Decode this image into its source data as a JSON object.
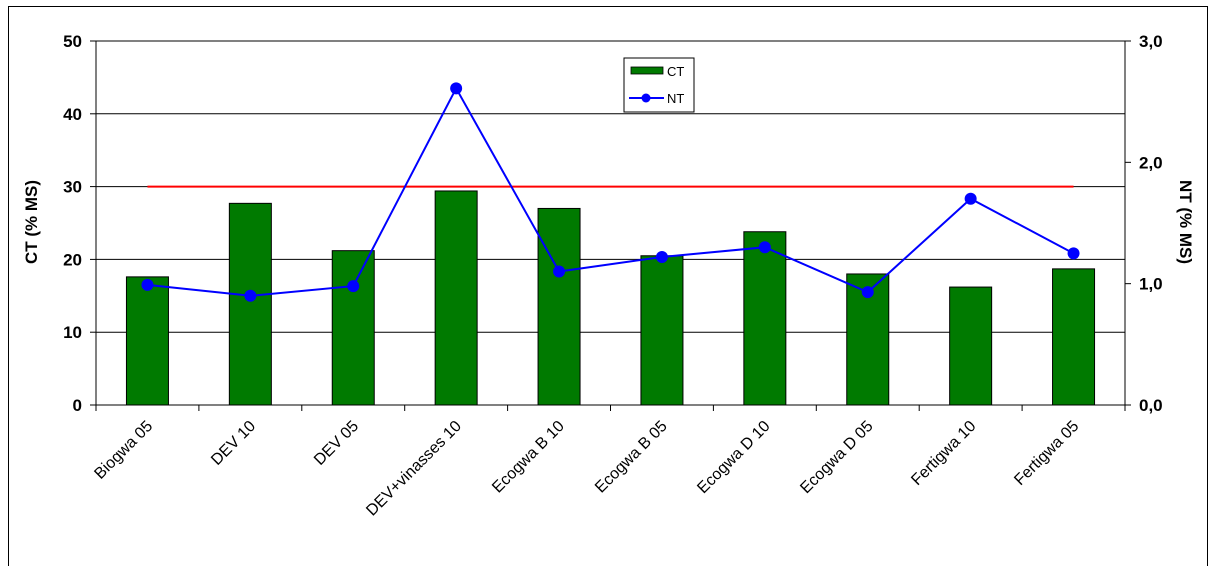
{
  "chart_data": {
    "type": "bar",
    "categories": [
      "Biogwa 05",
      "DEV 10",
      "DEV 05",
      "DEV+vinasses 10",
      "Ecogwa B 10",
      "Ecogwa B 05",
      "Ecogwa D 10",
      "Ecogwa D 05",
      "Fertigwa 10",
      "Fertigwa 05"
    ],
    "series": [
      {
        "name": "CT",
        "type": "bar",
        "axis": "left",
        "color": "#007a00",
        "values": [
          17.6,
          27.7,
          21.2,
          29.4,
          27.0,
          20.5,
          23.8,
          18.0,
          16.2,
          18.7
        ]
      },
      {
        "name": "NT",
        "type": "line",
        "axis": "right",
        "color": "#0000ff",
        "values": [
          0.99,
          0.9,
          0.98,
          2.61,
          1.1,
          1.22,
          1.3,
          0.93,
          1.7,
          1.25
        ]
      }
    ],
    "reference_line": {
      "axis": "left",
      "value": 30,
      "color": "#ff0000"
    },
    "ylabel": "CT (% MS)",
    "ylabel_right": "NT (% MS)",
    "ylim": [
      0,
      50
    ],
    "ylim_right": [
      0,
      3
    ],
    "yticks": [
      "0",
      "10",
      "20",
      "30",
      "40",
      "50"
    ],
    "yticks_right": [
      "0,0",
      "1,0",
      "2,0",
      "3,0"
    ],
    "grid": true,
    "legend_position": "top-center"
  }
}
